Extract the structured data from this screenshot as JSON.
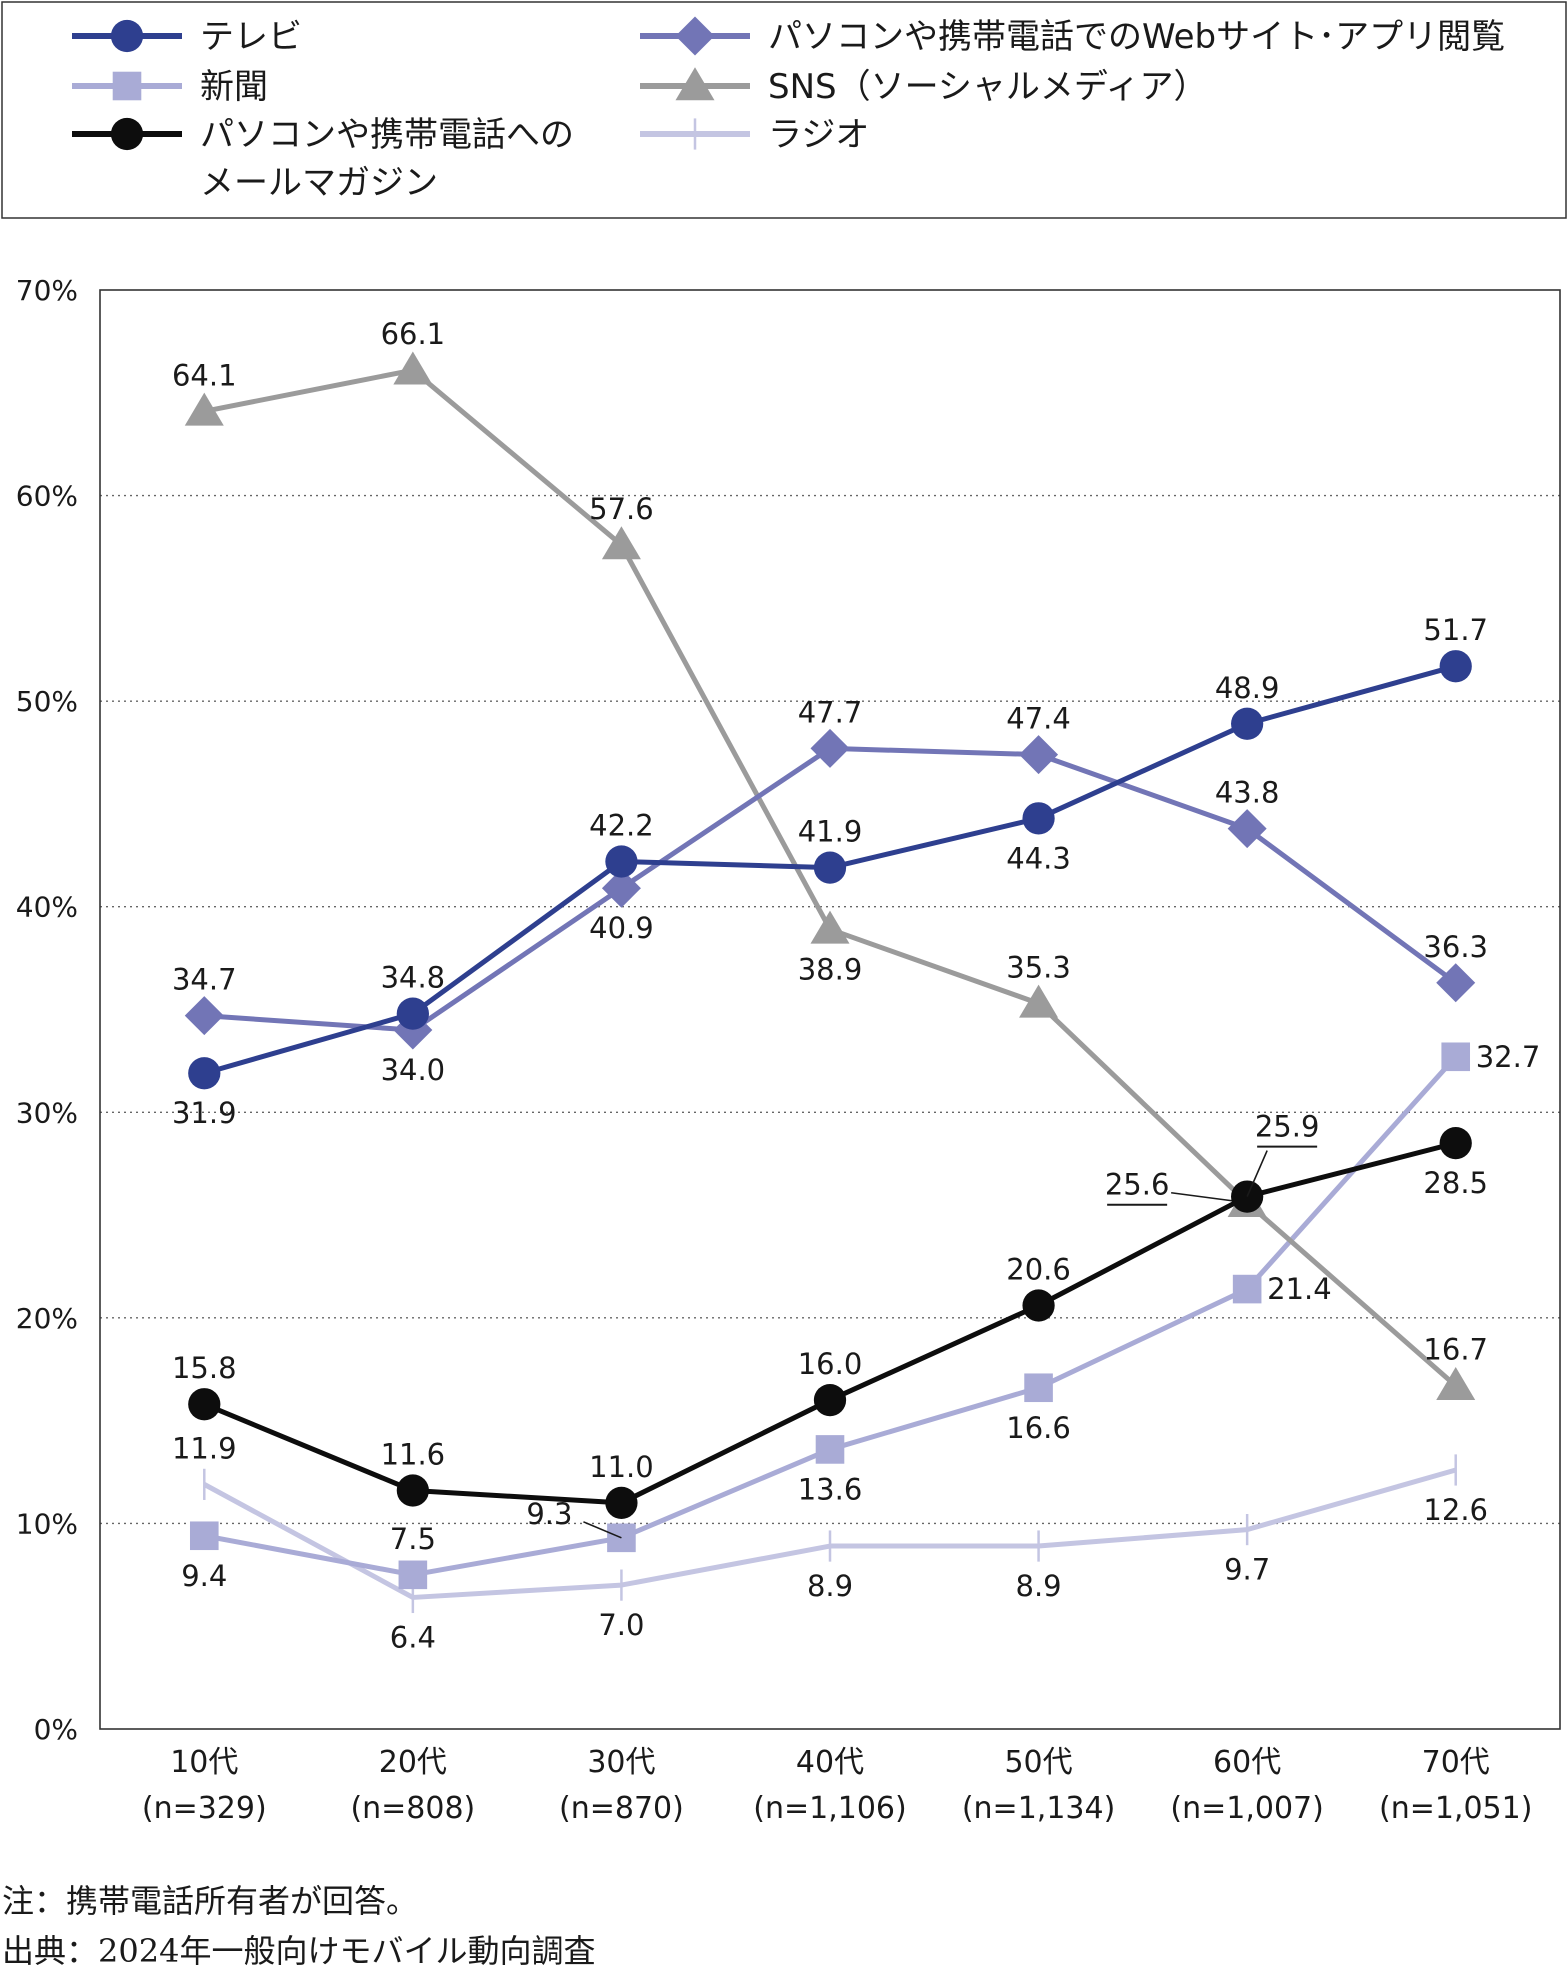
{
  "chart_data": {
    "type": "line",
    "categories": [
      "10代\n(n=329)",
      "20代\n(n=808)",
      "30代\n(n=870)",
      "40代\n(n=1,106)",
      "50代\n(n=1,134)",
      "60代\n(n=1,007)",
      "70代\n(n=1,051)"
    ],
    "category_lines": [
      [
        "10代",
        "(n=329)"
      ],
      [
        "20代",
        "(n=808)"
      ],
      [
        "30代",
        "(n=870)"
      ],
      [
        "40代",
        "(n=1,106)"
      ],
      [
        "50代",
        "(n=1,134)"
      ],
      [
        "60代",
        "(n=1,007)"
      ],
      [
        "70代",
        "(n=1,051)"
      ]
    ],
    "ylim": [
      0,
      70
    ],
    "yticks": [
      0,
      10,
      20,
      30,
      40,
      50,
      60,
      70
    ],
    "ytick_labels": [
      "0%",
      "10%",
      "20%",
      "30%",
      "40%",
      "50%",
      "60%",
      "70%"
    ],
    "grid": true,
    "legend_position": "top",
    "series": [
      {
        "name": "テレビ",
        "marker": "circle",
        "color": "#2e3f8f",
        "values": [
          31.9,
          34.8,
          42.2,
          41.9,
          44.3,
          48.9,
          51.7
        ],
        "labels": [
          "31.9",
          "34.8",
          "42.2",
          "41.9",
          "44.3",
          "48.9",
          "51.7"
        ]
      },
      {
        "name": "新聞",
        "marker": "square",
        "color": "#a9abd6",
        "values": [
          9.4,
          7.5,
          9.3,
          13.6,
          16.6,
          21.4,
          32.7
        ],
        "labels": [
          "9.4",
          "7.5",
          "9.3",
          "13.6",
          "16.6",
          "21.4",
          "32.7"
        ]
      },
      {
        "name": "パソコンや携帯電話へのメールマガジン",
        "name_lines": [
          "パソコンや携帯電話への",
          "メールマガジン"
        ],
        "marker": "circle",
        "color": "#0d0d0d",
        "values": [
          15.8,
          11.6,
          11.0,
          16.0,
          20.6,
          25.9,
          28.5
        ],
        "labels": [
          "15.8",
          "11.6",
          "11.0",
          "16.0",
          "20.6",
          "25.9",
          "28.5"
        ]
      },
      {
        "name": "パソコンや携帯電話でのWebサイト･アプリ閲覧",
        "marker": "diamond",
        "color": "#7275b6",
        "values": [
          34.7,
          34.0,
          40.9,
          47.7,
          47.4,
          43.8,
          36.3
        ],
        "labels": [
          "34.7",
          "34.0",
          "40.9",
          "47.7",
          "47.4",
          "43.8",
          "36.3"
        ]
      },
      {
        "name": "SNS（ソーシャルメディア）",
        "marker": "triangle",
        "color": "#9b9b9b",
        "values": [
          64.1,
          66.1,
          57.6,
          38.9,
          35.3,
          25.6,
          16.7
        ],
        "labels": [
          "64.1",
          "66.1",
          "57.6",
          "38.9",
          "35.3",
          "25.6",
          "16.7"
        ]
      },
      {
        "name": "ラジオ",
        "marker": "tick",
        "color": "#c4c5e2",
        "values": [
          11.9,
          6.4,
          7.0,
          8.9,
          8.9,
          9.7,
          12.6
        ],
        "labels": [
          "11.9",
          "6.4",
          "7.0",
          "8.9",
          "8.9",
          "9.7",
          "12.6"
        ]
      }
    ]
  },
  "notes": {
    "note": "注：携帯電話所有者が回答。",
    "source": "出典：2024年一般向けモバイル動向調査"
  }
}
